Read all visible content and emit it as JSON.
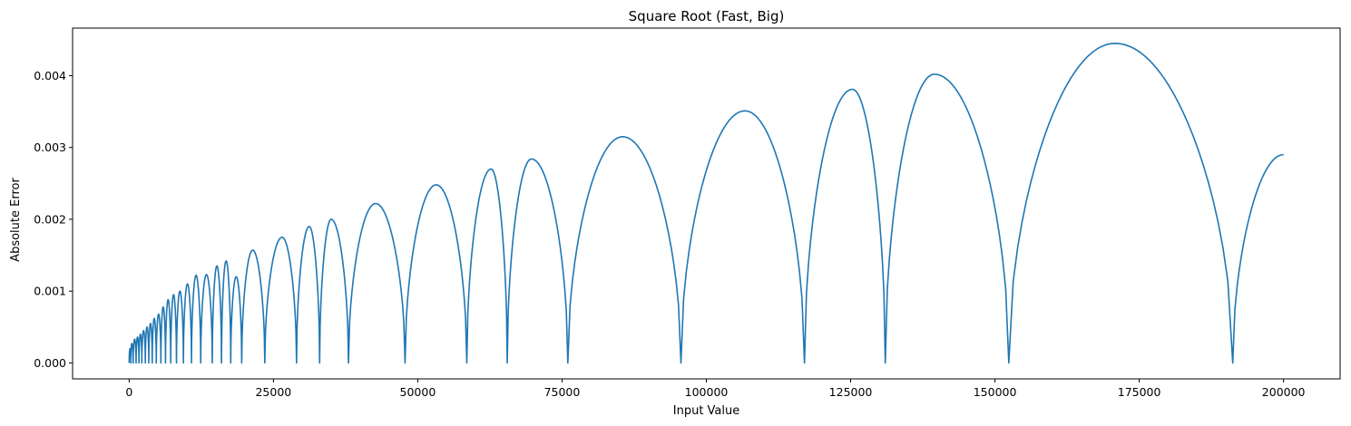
{
  "chart_data": {
    "type": "line",
    "title": "Square Root (Fast, Big)",
    "xlabel": "Input Value",
    "ylabel": "Absolute Error",
    "xlim": [
      -9800,
      209800
    ],
    "ylim": [
      -0.000222,
      0.004662
    ],
    "xticks": [
      0,
      25000,
      50000,
      75000,
      100000,
      125000,
      150000,
      175000,
      200000
    ],
    "xtick_labels": [
      "0",
      "25000",
      "50000",
      "75000",
      "100000",
      "125000",
      "150000",
      "175000",
      "200000"
    ],
    "yticks": [
      0.0,
      0.001,
      0.002,
      0.003,
      0.004
    ],
    "ytick_labels": [
      "0.000",
      "0.001",
      "0.002",
      "0.003",
      "0.004"
    ],
    "grid": false,
    "series_color": "#1f77b4",
    "zeros": [
      0,
      300,
      700,
      1200,
      1700,
      2200,
      2800,
      3400,
      4000,
      4700,
      5500,
      6300,
      7200,
      8200,
      9400,
      10800,
      12400,
      14400,
      16000,
      17600,
      19500,
      23500,
      29000,
      33000,
      38000,
      47800,
      58500,
      65500,
      76000,
      95600,
      117000,
      131000,
      152400,
      191200
    ],
    "end_point": [
      200000,
      0.0029
    ],
    "series": [
      {
        "x": [
          0,
          150,
          300,
          450,
          700,
          950,
          1200,
          1450,
          1700,
          1950,
          2200,
          2500,
          2800,
          3100,
          3400,
          3700,
          4000,
          4350,
          4700,
          5100,
          5500,
          5900,
          6300,
          6750,
          7200,
          7700,
          8200,
          8800,
          9400,
          10100,
          10800,
          11600,
          12400,
          13400,
          14400,
          15200,
          16000,
          16800,
          17600,
          18550,
          19500,
          21400,
          23500,
          26500,
          29000,
          31200,
          33000,
          35000,
          38000,
          42700,
          47800,
          53200,
          58500,
          62700,
          65500,
          69700,
          76000,
          85500,
          95600,
          106700,
          117000,
          125300,
          131000,
          139500,
          152400,
          170800,
          191200,
          200000
        ],
        "y": [
          0.0,
          0.0002,
          0.0,
          0.00027,
          0.0,
          0.00033,
          0.0,
          0.00036,
          0.0,
          0.0004,
          0.0,
          0.00045,
          0.0,
          0.0005,
          0.0,
          0.00055,
          0.0,
          0.00062,
          0.0,
          0.00068,
          0.0,
          0.00078,
          0.0,
          0.00088,
          0.0,
          0.00095,
          0.0,
          0.001,
          0.0,
          0.0011,
          0.0,
          0.00122,
          0.0,
          0.00123,
          0.0,
          0.00135,
          0.0,
          0.00142,
          0.0,
          0.0012,
          0.0,
          0.00157,
          0.0,
          0.00175,
          0.0,
          0.0019,
          0.0,
          0.002,
          0.0,
          0.00222,
          0.0,
          0.00248,
          0.0,
          0.0027,
          0.0,
          0.00284,
          0.0,
          0.00315,
          0.0,
          0.00351,
          0.0,
          0.00381,
          0.0,
          0.00402,
          0.0,
          0.00445,
          0.0,
          0.0029
        ]
      }
    ]
  }
}
